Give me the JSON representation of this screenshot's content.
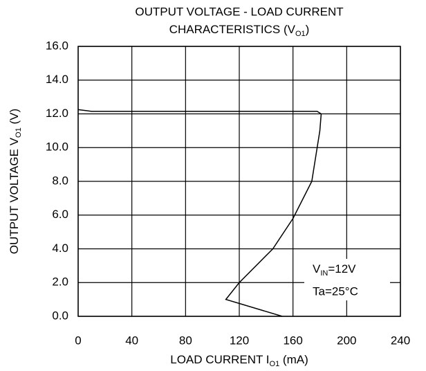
{
  "chart_data": {
    "type": "line",
    "title": [
      "OUTPUT VOLTAGE - LOAD CURRENT",
      "CHARACTERISTICS (V",
      "O1",
      ")"
    ],
    "x_label": [
      "LOAD CURRENT I",
      "O1",
      " (mA)"
    ],
    "y_label": [
      "OUTPUT VOLTAGE V",
      "O1",
      " (V)"
    ],
    "annotation": [
      [
        "V",
        "IN",
        "=12V"
      ],
      [
        "Ta=25°C"
      ]
    ],
    "grid": true,
    "xlim": [
      0,
      240
    ],
    "xticks": [
      0,
      40,
      80,
      120,
      160,
      200,
      240
    ],
    "ylim": [
      0,
      16
    ],
    "yticks": [
      {
        "value": 0,
        "label": "0.0"
      },
      {
        "value": 2,
        "label": "2.0"
      },
      {
        "value": 4,
        "label": "4.0"
      },
      {
        "value": 6,
        "label": "6.0"
      },
      {
        "value": 8,
        "label": "8.0"
      },
      {
        "value": 10,
        "label": "10.0"
      },
      {
        "value": 12,
        "label": "12.0"
      },
      {
        "value": 14,
        "label": "14.0"
      },
      {
        "value": 16,
        "label": "16.0"
      }
    ],
    "series": [
      {
        "color": "#000000",
        "x": [
          0,
          10,
          178,
          181,
          180,
          178,
          174,
          160,
          145,
          120,
          110,
          152
        ],
        "values": [
          12.25,
          12.15,
          12.15,
          12.0,
          11,
          10,
          8,
          5.8,
          4,
          2,
          1,
          0
        ]
      }
    ]
  }
}
